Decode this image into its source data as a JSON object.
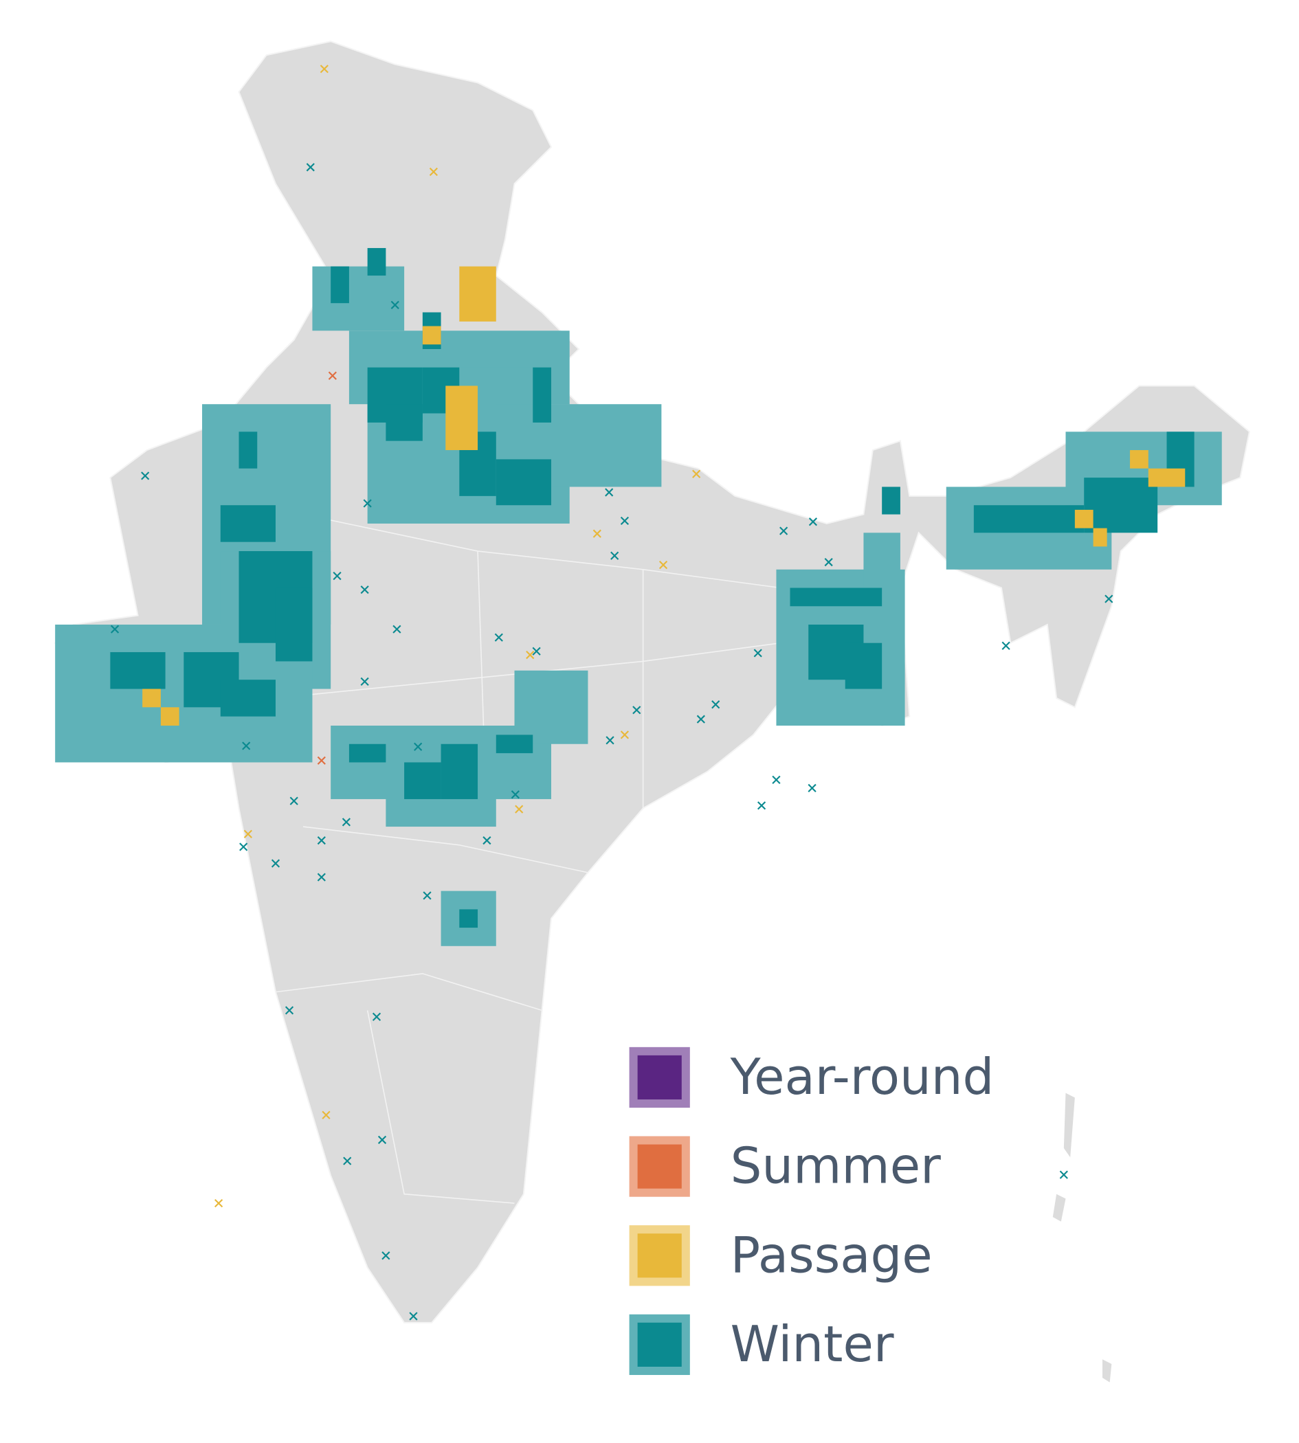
{
  "legend": {
    "items": [
      {
        "label": "Year-round",
        "color": "#5a2582",
        "border": "#a07fb8"
      },
      {
        "label": "Summer",
        "color": "#e06e40",
        "border": "#eea88a"
      },
      {
        "label": "Passage",
        "color": "#e8b83a",
        "border": "#f2d58a"
      },
      {
        "label": "Winter",
        "color": "#0b8a90",
        "border": "#5fb2b8"
      }
    ]
  }
}
